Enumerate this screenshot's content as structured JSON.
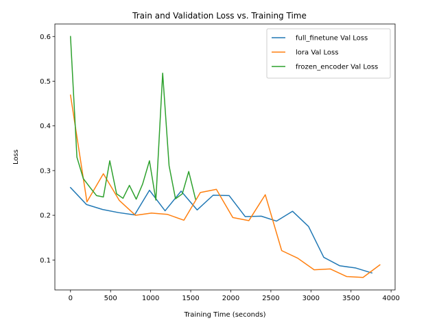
{
  "chart_data": {
    "type": "line",
    "title": "Train and Validation Loss vs. Training Time",
    "xlabel": "Training Time (seconds)",
    "ylabel": "Loss",
    "xlim": [
      -195,
      4050
    ],
    "ylim": [
      0.033,
      0.628
    ],
    "xticks": [
      0,
      500,
      1000,
      1500,
      2000,
      2500,
      3000,
      3500,
      4000
    ],
    "xtick_labels": [
      "0",
      "500",
      "1000",
      "1500",
      "2000",
      "2500",
      "3000",
      "3500",
      "4000"
    ],
    "yticks": [
      0.1,
      0.2,
      0.3,
      0.4,
      0.5,
      0.6
    ],
    "ytick_labels": [
      "0.1",
      "0.2",
      "0.3",
      "0.4",
      "0.5",
      "0.6"
    ],
    "grid": false,
    "legend_position": "upper right",
    "series": [
      {
        "name": "full_finetune Val Loss",
        "color": "#1f77b4",
        "points": [
          [
            0,
            0.262
          ],
          [
            200,
            0.224
          ],
          [
            400,
            0.213
          ],
          [
            600,
            0.206
          ],
          [
            800,
            0.201
          ],
          [
            985,
            0.256
          ],
          [
            1180,
            0.21
          ],
          [
            1380,
            0.254
          ],
          [
            1580,
            0.212
          ],
          [
            1780,
            0.245
          ],
          [
            1980,
            0.244
          ],
          [
            2180,
            0.197
          ],
          [
            2380,
            0.198
          ],
          [
            2570,
            0.187
          ],
          [
            2770,
            0.209
          ],
          [
            2970,
            0.175
          ],
          [
            3160,
            0.106
          ],
          [
            3360,
            0.087
          ],
          [
            3560,
            0.082
          ],
          [
            3760,
            0.071
          ]
        ]
      },
      {
        "name": "lora Val Loss",
        "color": "#ff7f0e",
        "points": [
          [
            0,
            0.469
          ],
          [
            205,
            0.23
          ],
          [
            410,
            0.293
          ],
          [
            610,
            0.233
          ],
          [
            810,
            0.2
          ],
          [
            1010,
            0.205
          ],
          [
            1210,
            0.202
          ],
          [
            1415,
            0.189
          ],
          [
            1620,
            0.251
          ],
          [
            1820,
            0.258
          ],
          [
            2025,
            0.195
          ],
          [
            2225,
            0.188
          ],
          [
            2430,
            0.246
          ],
          [
            2635,
            0.121
          ],
          [
            2835,
            0.104
          ],
          [
            3040,
            0.078
          ],
          [
            3240,
            0.08
          ],
          [
            3445,
            0.063
          ],
          [
            3650,
            0.061
          ],
          [
            3860,
            0.089
          ]
        ]
      },
      {
        "name": "frozen_encoder Val Loss",
        "color": "#2ca02c",
        "points": [
          [
            0,
            0.6
          ],
          [
            80,
            0.33
          ],
          [
            160,
            0.282
          ],
          [
            245,
            0.262
          ],
          [
            325,
            0.244
          ],
          [
            410,
            0.241
          ],
          [
            490,
            0.322
          ],
          [
            575,
            0.248
          ],
          [
            655,
            0.238
          ],
          [
            735,
            0.267
          ],
          [
            820,
            0.236
          ],
          [
            900,
            0.27
          ],
          [
            985,
            0.322
          ],
          [
            1065,
            0.234
          ],
          [
            1150,
            0.518
          ],
          [
            1230,
            0.311
          ],
          [
            1310,
            0.237
          ],
          [
            1395,
            0.248
          ],
          [
            1475,
            0.298
          ],
          [
            1560,
            0.236
          ]
        ]
      }
    ]
  }
}
